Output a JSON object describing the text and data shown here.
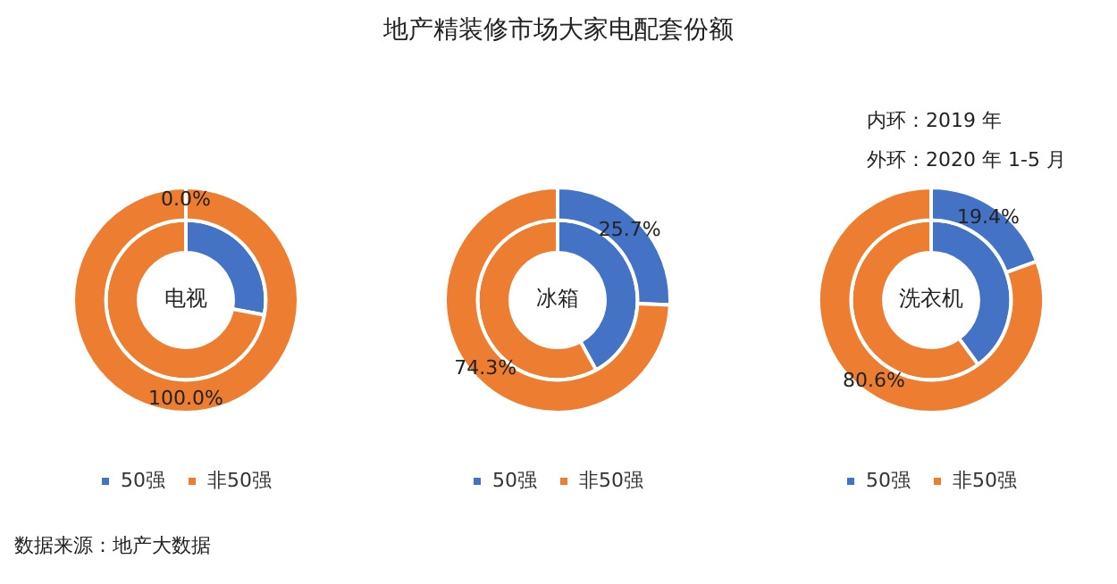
{
  "chart_data": [
    {
      "type": "donut",
      "categories": [
        "50强",
        "非50强"
      ],
      "legend": "bottom",
      "annotations": [
        "电视",
        "数据来源：地产大数据"
      ],
      "series": [
        {
          "colors": [
            "#4472c4",
            "#ed7d31"
          ],
          "values": [
            28,
            72
          ]
        },
        {
          "colors": [
            "#4472c4",
            "#ed7d31"
          ],
          "values": [
            0,
            100
          ],
          "value_labels": [
            "0.0%",
            "100.0%"
          ]
        }
      ]
    },
    {
      "type": "donut",
      "title": "地产精装修市场大家电配套份额",
      "categories": [
        "50强",
        "非50强"
      ],
      "legend": "bottom",
      "annotations": [
        "冰箱"
      ],
      "series": [
        {
          "colors": [
            "#4472c4",
            "#ed7d31"
          ],
          "values": [
            42,
            58
          ]
        },
        {
          "colors": [
            "#4472c4",
            "#ed7d31"
          ],
          "values": [
            25.7,
            74.3
          ],
          "value_labels": [
            "25.7%",
            "74.3%"
          ]
        }
      ]
    },
    {
      "type": "donut",
      "categories": [
        "50强",
        "非50强"
      ],
      "legend": "bottom",
      "annotations": [
        "洗衣机",
        "内环：2019 年",
        "外环：2020 年 1-5 月"
      ],
      "series": [
        {
          "colors": [
            "#4472c4",
            "#ed7d31"
          ],
          "values": [
            40,
            60
          ]
        },
        {
          "colors": [
            "#4472c4",
            "#ed7d31"
          ],
          "values": [
            19.4,
            80.6
          ],
          "value_labels": [
            "19.4%",
            "80.6%"
          ]
        }
      ]
    }
  ]
}
